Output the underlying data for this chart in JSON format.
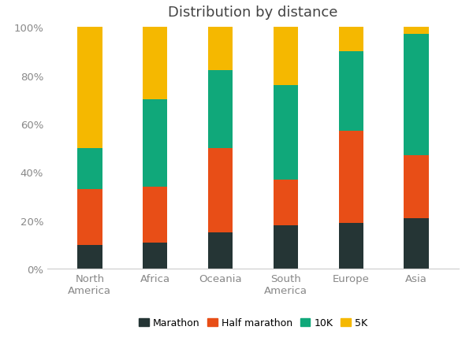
{
  "title": "Distribution by distance",
  "categories": [
    "North\nAmerica",
    "Africa",
    "Oceania",
    "South\nAmerica",
    "Europe",
    "Asia"
  ],
  "marathon": [
    0.1,
    0.11,
    0.15,
    0.18,
    0.19,
    0.21
  ],
  "half_marathon": [
    0.23,
    0.23,
    0.35,
    0.19,
    0.38,
    0.26
  ],
  "ten_k": [
    0.17,
    0.36,
    0.32,
    0.39,
    0.33,
    0.5
  ],
  "five_k": [
    0.5,
    0.3,
    0.18,
    0.24,
    0.1,
    0.03
  ],
  "colors": {
    "marathon": "#253535",
    "half_marathon": "#e84e17",
    "ten_k": "#10a87a",
    "five_k": "#f5b800"
  },
  "legend_labels": [
    "Marathon",
    "Half marathon",
    "10K",
    "5K"
  ],
  "ylim": [
    0,
    1.0
  ],
  "ytick_labels": [
    "0%",
    "20%",
    "40%",
    "60%",
    "80%",
    "100%"
  ],
  "ytick_values": [
    0,
    0.2,
    0.4,
    0.6,
    0.8,
    1.0
  ],
  "background_color": "#ffffff",
  "title_fontsize": 13,
  "tick_fontsize": 9.5,
  "legend_fontsize": 9,
  "bar_width": 0.38
}
